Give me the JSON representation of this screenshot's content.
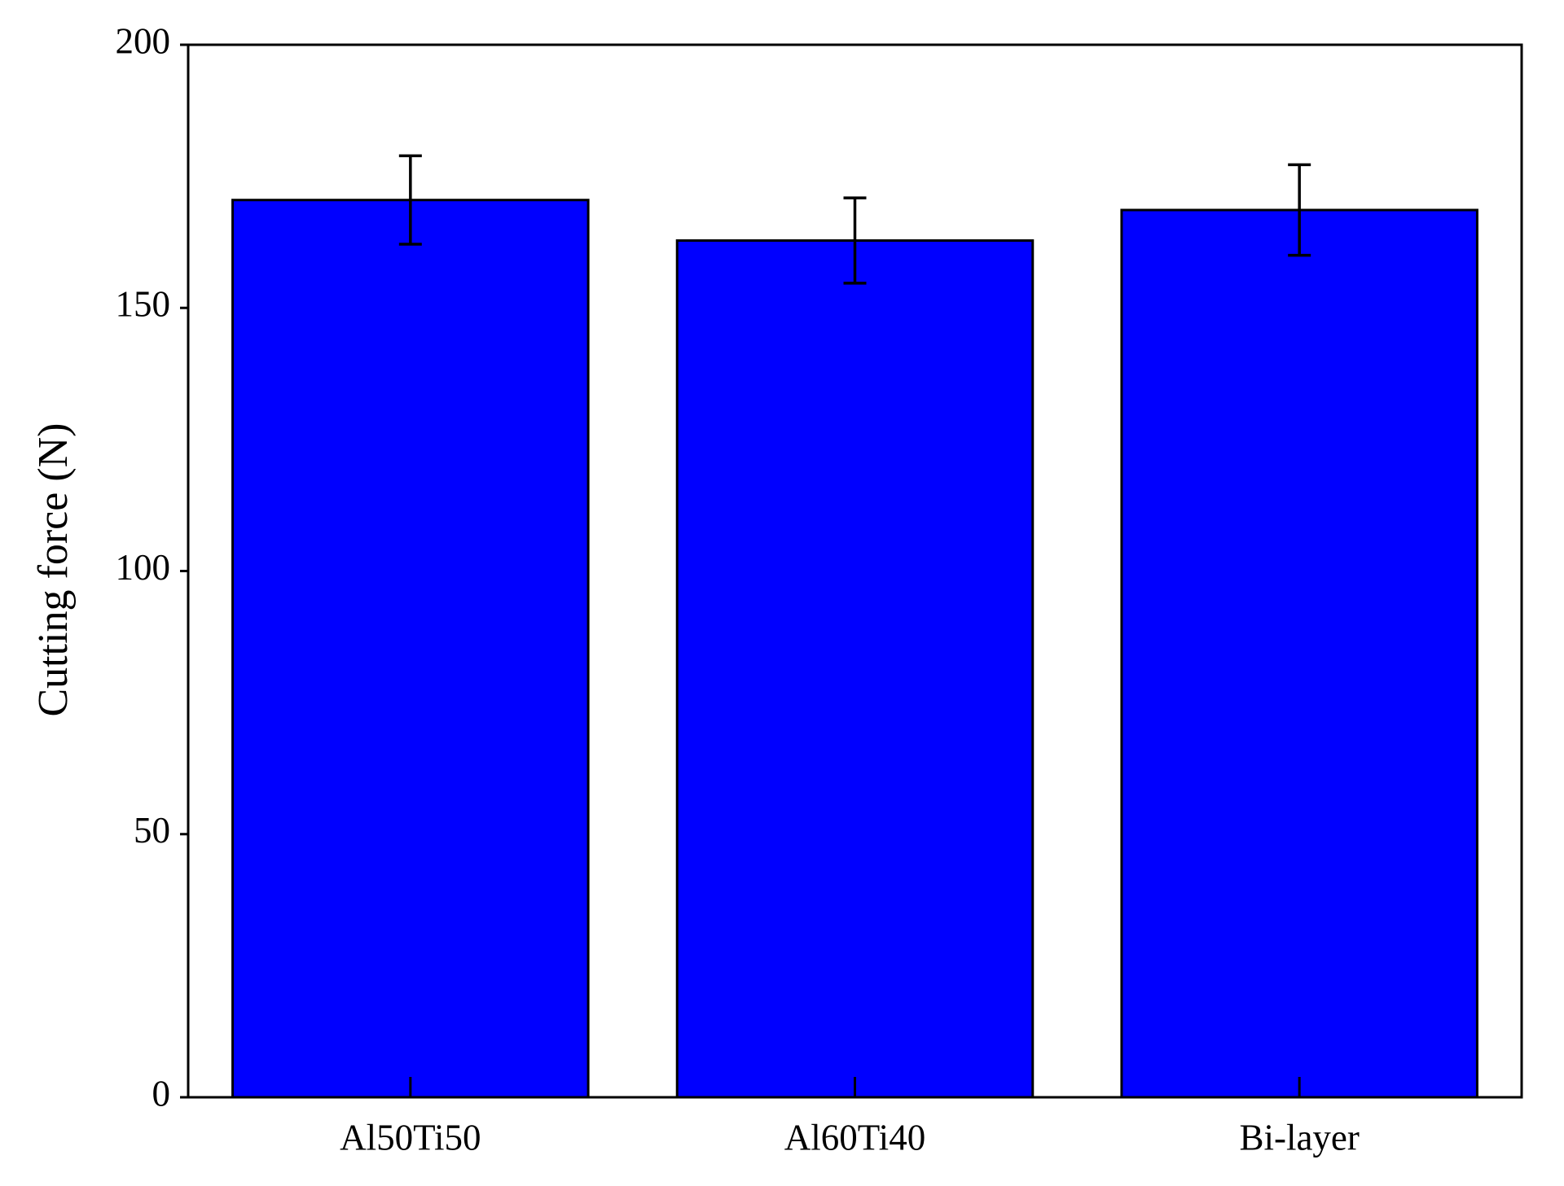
{
  "chart_data": {
    "type": "bar",
    "y_label": "Cutting force (N)",
    "categories": [
      "Al50Ti50",
      "Al60Ti40",
      "Bi-layer"
    ],
    "values": [
      170.5,
      162.8,
      168.6
    ],
    "errors": [
      8.4,
      8.1,
      8.6
    ],
    "color": "#0000ff",
    "ylim": [
      0,
      200
    ],
    "yticks": [
      0,
      50,
      100,
      150,
      200
    ],
    "grid": false
  }
}
